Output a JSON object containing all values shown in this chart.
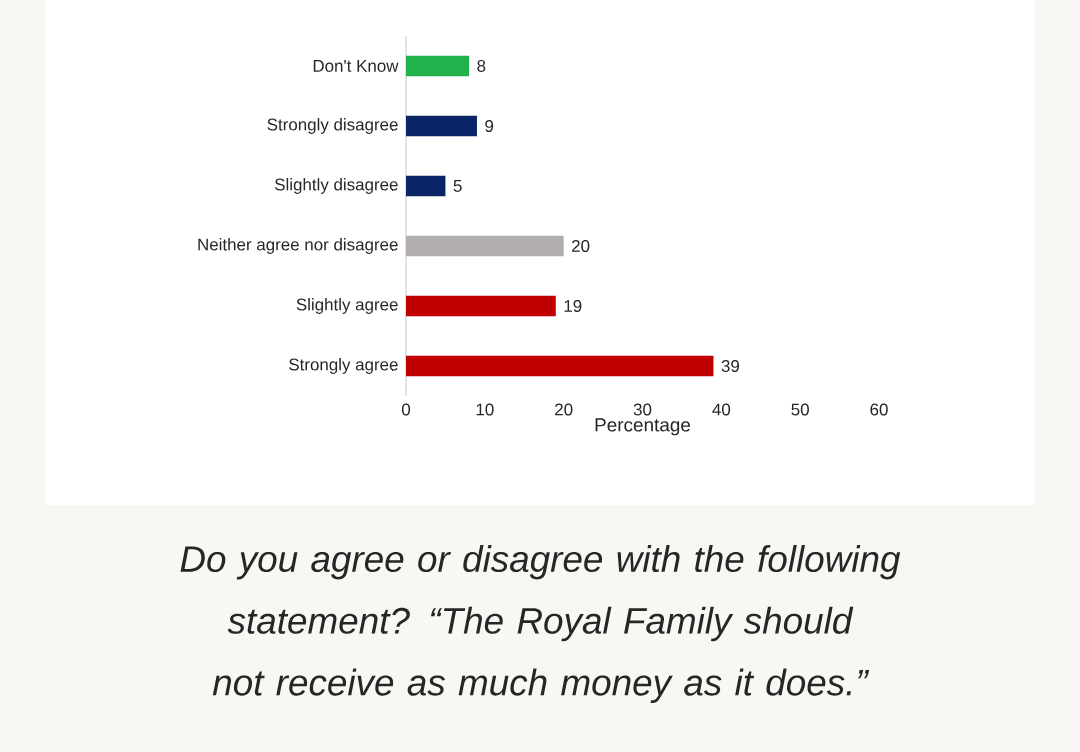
{
  "chart_data": {
    "type": "bar",
    "orientation": "horizontal",
    "categories": [
      "Don't Know",
      "Strongly disagree",
      "Slightly disagree",
      "Neither agree nor disagree",
      "Slightly agree",
      "Strongly agree"
    ],
    "values": [
      8,
      9,
      5,
      20,
      19,
      39
    ],
    "colors": [
      "#21b24b",
      "#0b2466",
      "#0b2466",
      "#b2aeae",
      "#c00000",
      "#c00000"
    ],
    "xlim": [
      0,
      60
    ],
    "xticks": [
      0,
      10,
      20,
      30,
      40,
      50,
      60
    ],
    "xlabel": "Percentage",
    "data_labels": true,
    "annotations": [
      "Do you agree or disagree with the following statement? “The Royal Family should not receive as much money as it does.”"
    ]
  }
}
